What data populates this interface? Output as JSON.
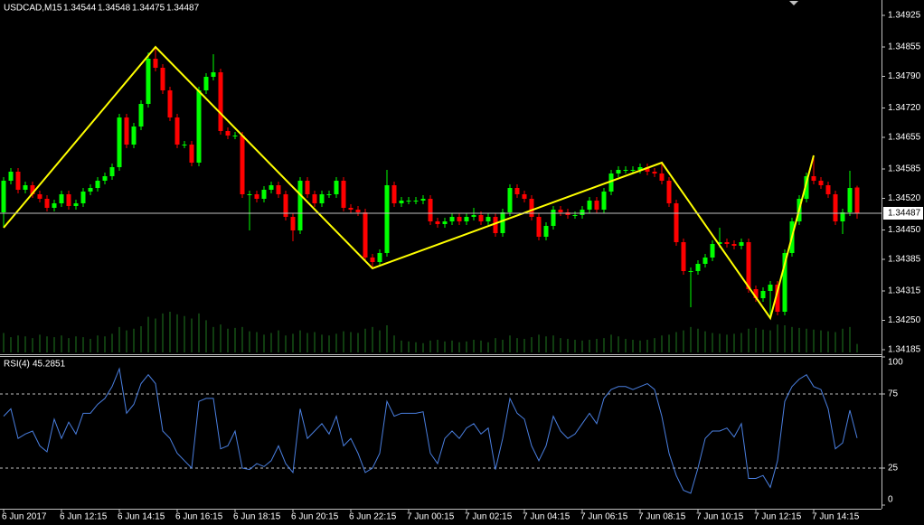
{
  "chart_data": [
    {
      "type": "candlestick",
      "symbol": "USDCAD,M15",
      "categories": [
        "6 Jun 2017",
        null,
        null,
        null,
        null,
        null,
        null,
        null,
        "6 Jun 12:15",
        null,
        null,
        null,
        null,
        null,
        null,
        null,
        "6 Jun 14:15",
        null,
        null,
        null,
        null,
        null,
        null,
        null,
        "6 Jun 16:15",
        null,
        null,
        null,
        null,
        null,
        null,
        null,
        "6 Jun 18:15",
        null,
        null,
        null,
        null,
        null,
        null,
        null,
        "6 Jun 20:15",
        null,
        null,
        null,
        null,
        null,
        null,
        null,
        "6 Jun 22:15",
        null,
        null,
        null,
        null,
        null,
        null,
        null,
        "7 Jun 00:15",
        null,
        null,
        null,
        null,
        null,
        null,
        null,
        "7 Jun 02:15",
        null,
        null,
        null,
        null,
        null,
        null,
        null,
        "7 Jun 04:15",
        null,
        null,
        null,
        null,
        null,
        null,
        null,
        "7 Jun 06:15",
        null,
        null,
        null,
        null,
        null,
        null,
        null,
        "7 Jun 08:15",
        null,
        null,
        null,
        null,
        null,
        null,
        null,
        "7 Jun 10:15",
        null,
        null,
        null,
        null,
        null,
        null,
        null,
        "7 Jun 12:15",
        null,
        null,
        null,
        null,
        null,
        null,
        null,
        "7 Jun 14:15",
        null,
        null,
        null,
        null,
        null,
        null
      ],
      "ohlc": [
        [
          1.34489,
          1.34567,
          1.34455,
          1.34559
        ],
        [
          1.34559,
          1.34587,
          1.34551,
          1.34579
        ],
        [
          1.34579,
          1.34587,
          1.34531,
          1.34539
        ],
        [
          1.34539,
          1.34557,
          1.34531,
          1.34549
        ],
        [
          1.34549,
          1.34557,
          1.34521,
          1.34529
        ],
        [
          1.34529,
          1.34537,
          1.34511,
          1.34519
        ],
        [
          1.34519,
          1.34527,
          1.34491,
          1.34499
        ],
        [
          1.34499,
          1.34517,
          1.34491,
          1.34509
        ],
        [
          1.34509,
          1.34537,
          1.34501,
          1.34529
        ],
        [
          1.34529,
          1.34537,
          1.34495,
          1.34503
        ],
        [
          1.34503,
          1.34517,
          1.34495,
          1.34509
        ],
        [
          1.34509,
          1.34543,
          1.34501,
          1.34535
        ],
        [
          1.34535,
          1.34551,
          1.34527,
          1.34543
        ],
        [
          1.34543,
          1.34567,
          1.34535,
          1.34559
        ],
        [
          1.34559,
          1.34577,
          1.34551,
          1.34569
        ],
        [
          1.34569,
          1.34597,
          1.34561,
          1.34589
        ],
        [
          1.34589,
          1.34707,
          1.34581,
          1.34699
        ],
        [
          1.34699,
          1.34707,
          1.34631,
          1.34639
        ],
        [
          1.34639,
          1.34687,
          1.34631,
          1.34679
        ],
        [
          1.34679,
          1.34737,
          1.34671,
          1.34729
        ],
        [
          1.34729,
          1.34843,
          1.34721,
          1.34829
        ],
        [
          1.34829,
          1.34855,
          1.34801,
          1.34809
        ],
        [
          1.34809,
          1.34817,
          1.34751,
          1.34759
        ],
        [
          1.34759,
          1.34767,
          1.34691,
          1.34699
        ],
        [
          1.34699,
          1.34707,
          1.34631,
          1.34639
        ],
        [
          1.34639,
          1.34647,
          1.34631,
          1.34639
        ],
        [
          1.34639,
          1.34647,
          1.34591,
          1.34599
        ],
        [
          1.34599,
          1.34767,
          1.34591,
          1.34759
        ],
        [
          1.34759,
          1.34797,
          1.34751,
          1.34789
        ],
        [
          1.34789,
          1.34839,
          1.34781,
          1.34799
        ],
        [
          1.34799,
          1.34807,
          1.34661,
          1.34669
        ],
        [
          1.34669,
          1.34677,
          1.34651,
          1.34659
        ],
        [
          1.34659,
          1.34667,
          1.34651,
          1.34659
        ],
        [
          1.34659,
          1.34667,
          1.34521,
          1.34529
        ],
        [
          1.34529,
          1.34537,
          1.34449,
          1.34529
        ],
        [
          1.34529,
          1.34537,
          1.34511,
          1.34519
        ],
        [
          1.34519,
          1.34547,
          1.34511,
          1.34539
        ],
        [
          1.34539,
          1.34557,
          1.34531,
          1.34549
        ],
        [
          1.34549,
          1.34557,
          1.34521,
          1.34529
        ],
        [
          1.34529,
          1.34537,
          1.34471,
          1.34479
        ],
        [
          1.34479,
          1.34487,
          1.34425,
          1.34449
        ],
        [
          1.34449,
          1.34567,
          1.34441,
          1.34559
        ],
        [
          1.34559,
          1.34567,
          1.34521,
          1.34529
        ],
        [
          1.34529,
          1.34537,
          1.34501,
          1.34509
        ],
        [
          1.34509,
          1.34537,
          1.34501,
          1.34529
        ],
        [
          1.34529,
          1.34537,
          1.34521,
          1.34529
        ],
        [
          1.34529,
          1.34567,
          1.34521,
          1.34559
        ],
        [
          1.34559,
          1.34567,
          1.34491,
          1.34499
        ],
        [
          1.34499,
          1.34507,
          1.34487,
          1.34495
        ],
        [
          1.34495,
          1.34503,
          1.34481,
          1.34489
        ],
        [
          1.34489,
          1.34497,
          1.34381,
          1.34389
        ],
        [
          1.34389,
          1.34397,
          1.34365,
          1.34379
        ],
        [
          1.34379,
          1.34407,
          1.34371,
          1.34399
        ],
        [
          1.34399,
          1.34583,
          1.34391,
          1.34549
        ],
        [
          1.34549,
          1.34557,
          1.34501,
          1.34509
        ],
        [
          1.34509,
          1.34523,
          1.34501,
          1.34515
        ],
        [
          1.34515,
          1.34523,
          1.34507,
          1.34515
        ],
        [
          1.34515,
          1.34523,
          1.34507,
          1.34515
        ],
        [
          1.34515,
          1.34527,
          1.34507,
          1.34519
        ],
        [
          1.34519,
          1.34527,
          1.34461,
          1.34469
        ],
        [
          1.34469,
          1.34477,
          1.34455,
          1.34463
        ],
        [
          1.34463,
          1.34477,
          1.34455,
          1.34469
        ],
        [
          1.34469,
          1.34487,
          1.34461,
          1.34479
        ],
        [
          1.34479,
          1.34487,
          1.34461,
          1.34469
        ],
        [
          1.34469,
          1.34487,
          1.34461,
          1.34479
        ],
        [
          1.34479,
          1.34499,
          1.34471,
          1.34483
        ],
        [
          1.34483,
          1.34491,
          1.34461,
          1.34469
        ],
        [
          1.34469,
          1.34487,
          1.34461,
          1.34479
        ],
        [
          1.34479,
          1.34487,
          1.34435,
          1.34443
        ],
        [
          1.34443,
          1.34497,
          1.34435,
          1.34489
        ],
        [
          1.34489,
          1.34551,
          1.34481,
          1.34543
        ],
        [
          1.34543,
          1.34551,
          1.34521,
          1.34529
        ],
        [
          1.34529,
          1.34537,
          1.34511,
          1.34519
        ],
        [
          1.34519,
          1.34527,
          1.34471,
          1.34479
        ],
        [
          1.34479,
          1.34487,
          1.34427,
          1.34435
        ],
        [
          1.34435,
          1.34467,
          1.34427,
          1.34459
        ],
        [
          1.34459,
          1.34503,
          1.34451,
          1.34495
        ],
        [
          1.34495,
          1.34503,
          1.34481,
          1.34489
        ],
        [
          1.34489,
          1.34497,
          1.34475,
          1.34483
        ],
        [
          1.34483,
          1.34491,
          1.34475,
          1.34483
        ],
        [
          1.34483,
          1.34503,
          1.34475,
          1.34495
        ],
        [
          1.34495,
          1.34523,
          1.34487,
          1.34515
        ],
        [
          1.34515,
          1.34523,
          1.34487,
          1.34495
        ],
        [
          1.34495,
          1.34543,
          1.34487,
          1.34535
        ],
        [
          1.34535,
          1.34583,
          1.34527,
          1.34575
        ],
        [
          1.34575,
          1.34591,
          1.34567,
          1.34583
        ],
        [
          1.34583,
          1.34591,
          1.34575,
          1.34583
        ],
        [
          1.34583,
          1.34591,
          1.34575,
          1.34583
        ],
        [
          1.34583,
          1.34597,
          1.34575,
          1.34589
        ],
        [
          1.34589,
          1.34597,
          1.34571,
          1.34579
        ],
        [
          1.34579,
          1.34587,
          1.34567,
          1.34575
        ],
        [
          1.34575,
          1.34599,
          1.34551,
          1.34559
        ],
        [
          1.34559,
          1.34567,
          1.34501,
          1.34509
        ],
        [
          1.34509,
          1.34517,
          1.34415,
          1.34423
        ],
        [
          1.34423,
          1.34431,
          1.34351,
          1.34359
        ],
        [
          1.34359,
          1.34367,
          1.34279,
          1.34359
        ],
        [
          1.34359,
          1.34383,
          1.34351,
          1.34375
        ],
        [
          1.34375,
          1.34397,
          1.34367,
          1.34389
        ],
        [
          1.34389,
          1.34427,
          1.34381,
          1.34419
        ],
        [
          1.34419,
          1.34455,
          1.34411,
          1.34423
        ],
        [
          1.34423,
          1.34431,
          1.34411,
          1.34419
        ],
        [
          1.34419,
          1.34427,
          1.34407,
          1.34415
        ],
        [
          1.34415,
          1.34431,
          1.34407,
          1.34423
        ],
        [
          1.34423,
          1.34431,
          1.34311,
          1.34319
        ],
        [
          1.34319,
          1.34327,
          1.34291,
          1.34299
        ],
        [
          1.34299,
          1.34323,
          1.34291,
          1.34315
        ],
        [
          1.34315,
          1.34337,
          1.34255,
          1.34329
        ],
        [
          1.34329,
          1.34337,
          1.34261,
          1.34269
        ],
        [
          1.34269,
          1.34407,
          1.34261,
          1.34399
        ],
        [
          1.34399,
          1.34477,
          1.34391,
          1.34469
        ],
        [
          1.34469,
          1.34527,
          1.34461,
          1.34519
        ],
        [
          1.34519,
          1.34577,
          1.34511,
          1.34569
        ],
        [
          1.34569,
          1.34615,
          1.34551,
          1.34559
        ],
        [
          1.34559,
          1.34567,
          1.34541,
          1.34549
        ],
        [
          1.34549,
          1.34557,
          1.34521,
          1.34529
        ],
        [
          1.34529,
          1.34537,
          1.34461,
          1.34469
        ],
        [
          1.34469,
          1.34497,
          1.34441,
          1.34489
        ],
        [
          1.34489,
          1.34581,
          1.34481,
          1.34543
        ],
        [
          1.34544,
          1.34548,
          1.34475,
          1.34487
        ]
      ],
      "up_color": "#00ff00",
      "down_color": "#ff0000",
      "volume": [
        230,
        180,
        200,
        190,
        170,
        210,
        190,
        180,
        200,
        170,
        190,
        180,
        160,
        200,
        190,
        220,
        300,
        260,
        280,
        310,
        420,
        400,
        460,
        480,
        450,
        430,
        400,
        460,
        380,
        300,
        330,
        280,
        290,
        300,
        250,
        240,
        210,
        230,
        260,
        200,
        220,
        260,
        230,
        240,
        210,
        200,
        220,
        250,
        240,
        230,
        280,
        300,
        260,
        320,
        200,
        140,
        130,
        120,
        110,
        140,
        150,
        130,
        140,
        120,
        130,
        150,
        140,
        120,
        170,
        150,
        200,
        170,
        160,
        180,
        210,
        190,
        200,
        170,
        160,
        150,
        140,
        150,
        160,
        170,
        210,
        190,
        160,
        150,
        140,
        150,
        170,
        200,
        210,
        240,
        260,
        300,
        280,
        250,
        230,
        220,
        210,
        220,
        230,
        280,
        290,
        270,
        260,
        330,
        320,
        300,
        290,
        280,
        270,
        260,
        250,
        240,
        280,
        300,
        100
      ],
      "volume_color": "#1f7a1f",
      "zigzag": {
        "color": "#ffff00",
        "indices": [
          0,
          21,
          51,
          91,
          106,
          112
        ],
        "values": [
          1.34455,
          1.34855,
          1.34365,
          1.34599,
          1.34255,
          1.34615
        ]
      },
      "ylim": [
        1.34175,
        1.34959
      ],
      "yticks": [
        1.34925,
        1.34855,
        {
          "value": 1.3479,
          "label": "1.34790"
        },
        {
          "value": 1.3472,
          "label": "1.34720"
        },
        1.34655,
        1.34585,
        {
          "value": 1.3452,
          "label": "1.34520"
        },
        {
          "value": 1.3445,
          "label": "1.34450"
        },
        1.34385,
        1.34315,
        {
          "value": 1.3425,
          "label": "1.34250"
        },
        1.34185
      ],
      "current_price_line": true
    },
    {
      "type": "line",
      "title": "RSI(4)",
      "values": [
        60,
        65,
        45,
        48,
        50,
        40,
        36,
        58,
        45,
        56,
        48,
        62,
        62,
        68,
        72,
        80,
        92,
        62,
        68,
        82,
        88,
        82,
        50,
        45,
        35,
        30,
        25,
        70,
        72,
        72,
        38,
        40,
        50,
        25,
        24,
        28,
        26,
        30,
        40,
        28,
        22,
        65,
        45,
        50,
        55,
        48,
        60,
        40,
        45,
        35,
        22,
        25,
        35,
        70,
        60,
        62,
        62,
        62,
        63,
        35,
        28,
        45,
        50,
        45,
        52,
        55,
        48,
        52,
        24,
        45,
        72,
        62,
        58,
        40,
        30,
        40,
        60,
        50,
        45,
        48,
        55,
        62,
        55,
        72,
        78,
        80,
        80,
        78,
        80,
        82,
        78,
        60,
        35,
        20,
        10,
        8,
        25,
        45,
        50,
        50,
        52,
        46,
        55,
        18,
        18,
        20,
        12,
        30,
        70,
        80,
        85,
        88,
        80,
        78,
        65,
        38,
        42,
        64,
        45.2851
      ],
      "color": "#4a7fe0",
      "ylim": [
        0,
        100
      ],
      "yticks": [
        100,
        75,
        25,
        0
      ],
      "levels": [
        75,
        25
      ]
    }
  ]
}
